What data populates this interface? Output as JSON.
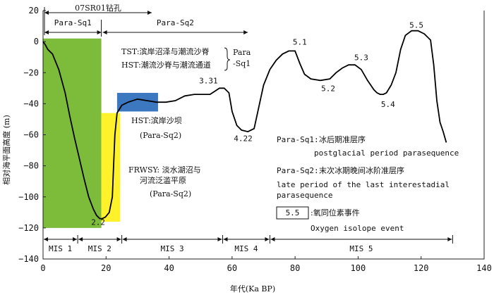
{
  "chart_data": {
    "type": "line",
    "xlabel": "年代(Ka BP)",
    "ylabel": "相对海平面高度 (m)",
    "xlim": [
      0,
      140
    ],
    "ylim": [
      -140,
      20
    ],
    "x_ticks": [
      0,
      20,
      40,
      60,
      80,
      100,
      120,
      140
    ],
    "y_ticks": [
      20,
      0,
      -20,
      -40,
      -60,
      -80,
      -100,
      -120,
      -140
    ],
    "tick_labels_x": [
      "0",
      "20",
      "40",
      "60",
      "80",
      "100",
      "120",
      "140"
    ],
    "tick_labels_y": [
      "20",
      "0",
      "−20",
      "−40",
      "−60",
      "−80",
      "−100",
      "−120",
      "−140"
    ],
    "series": [
      {
        "x": [
          0,
          0.7,
          1.5,
          3,
          5,
          7,
          8.5,
          10,
          11.5,
          13,
          14.5,
          16,
          17,
          18,
          18.8,
          19.8,
          21,
          22,
          22.3,
          22.8,
          23.5,
          25,
          27,
          30,
          33,
          36,
          39,
          42,
          45,
          48,
          50,
          53,
          56,
          57.5,
          59,
          60,
          61.5,
          63,
          65,
          67,
          68.5,
          70,
          72,
          74,
          76,
          78,
          80,
          81.5,
          83,
          85,
          88,
          91,
          93,
          95,
          97,
          99,
          101,
          103,
          105,
          106,
          107,
          108,
          109,
          110.5,
          112,
          113.5,
          115,
          117,
          119,
          121,
          123,
          124,
          125,
          126,
          127,
          128
        ],
        "y": [
          0,
          -2,
          -5,
          -8,
          -18,
          -33,
          -48,
          -62,
          -75,
          -88,
          -100,
          -108,
          -112,
          -114,
          -114,
          -113,
          -110,
          -100,
          -84,
          -60,
          -46,
          -41,
          -39,
          -37,
          -38,
          -39,
          -39,
          -38,
          -35,
          -34,
          -34,
          -34,
          -30,
          -30,
          -33,
          -45,
          -54,
          -57,
          -58,
          -56,
          -42,
          -28,
          -18,
          -12,
          -8,
          -6,
          -6,
          -14,
          -21,
          -24,
          -25,
          -24,
          -20,
          -17,
          -15,
          -15,
          -18,
          -25,
          -31,
          -33,
          -34,
          -34,
          -33,
          -28,
          -20,
          -5,
          4,
          7,
          7,
          5,
          1,
          -15,
          -38,
          -52,
          -58,
          -65
        ]
      }
    ],
    "point_labels": [
      {
        "text": "5.5",
        "x": 118.5,
        "y": 9
      },
      {
        "text": "5.1",
        "x": 81.5,
        "y": -2
      },
      {
        "text": "5.3",
        "x": 101,
        "y": -12
      },
      {
        "text": "5.2",
        "x": 90.5,
        "y": -32
      },
      {
        "text": "5.4",
        "x": 109.5,
        "y": -42
      },
      {
        "text": "3.31",
        "x": 52.5,
        "y": -27
      },
      {
        "text": "4.22",
        "x": 63.5,
        "y": -64
      },
      {
        "text": "2.2",
        "x": 17.5,
        "y": -118
      }
    ],
    "top_brackets": [
      {
        "text": "07SR01钻孔",
        "x_start": 0,
        "x_end": 34.5
      },
      {
        "text": "Para-Sq1",
        "x_start": 0,
        "x_end": 18.5
      },
      {
        "text": "Para-Sq2",
        "x_start": 18.5,
        "x_end": 65
      }
    ],
    "mis_stages": [
      {
        "text": "MIS 1",
        "x_start": 0,
        "x_end": 11
      },
      {
        "text": "MIS 2",
        "x_start": 11,
        "x_end": 25
      },
      {
        "text": "MIS 3",
        "x_start": 25,
        "x_end": 57
      },
      {
        "text": "MIS 4",
        "x_start": 57,
        "x_end": 72
      },
      {
        "text": "MIS 5",
        "x_start": 72,
        "x_end": 130
      }
    ],
    "facies_boxes": [
      {
        "color": "#7dbb3b",
        "x_start": 0,
        "x_end": 18.5,
        "y_top": 2,
        "y_bottom": -120
      },
      {
        "color": "#fff12a",
        "x_start": 18.5,
        "x_end": 24.5,
        "y_top": -46,
        "y_bottom": -116
      },
      {
        "color": "#3b78bf",
        "x_start": 23.5,
        "x_end": 36.5,
        "y_top": -33,
        "y_bottom": -45
      }
    ],
    "annotations": {
      "tst_line": "TST:滨岸沼泽与潮流沙脊",
      "hst_line": "HST:潮流沙脊与潮流通道",
      "para_sq1_brace_label": "Para",
      "para_sq1_brace_label2": "-Sq1",
      "hst_barrier": "HST:滨岸沙坝",
      "hst_barrier_sub": "(Para-Sq2)",
      "frwsy_line1": "FRWSY: 淡水湖沼与",
      "frwsy_line2": "河流泛滥平原",
      "frwsy_sub": "(Para-Sq2)"
    },
    "legend": {
      "para_sq1_label": "Para-Sq1:",
      "para_sq1_cn": "冰后期准层序",
      "para_sq1_en": "postglacial period parasequence",
      "para_sq2_label": "Para-Sq2:",
      "para_sq2_cn": "末次冰期晚间冰阶准层序",
      "para_sq2_en_line1": "late period of the last interestadial",
      "para_sq2_en_line2": "parasequence",
      "isotope_box": "5.5",
      "isotope_cn": ":氧同位素事件",
      "isotope_en": "Oxygen isolope event"
    }
  }
}
